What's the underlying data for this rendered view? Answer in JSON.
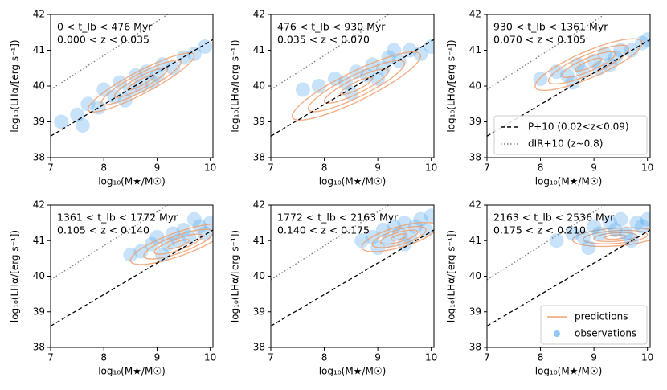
{
  "chart_data": [
    {
      "type": "scatter",
      "annotations": [
        "0 < t_lb < 476 Myr",
        "0.000 < z < 0.035"
      ],
      "xlabel": "log₁₀(M★/M☉)",
      "ylabel": "log₁₀(LHα/[erg s⁻¹])",
      "xlim": [
        7,
        10.05
      ],
      "ylim": [
        38,
        42
      ],
      "xticks": [
        7,
        8,
        9,
        10
      ],
      "yticks": [
        38,
        39,
        40,
        41,
        42
      ],
      "series": [
        {
          "type": "points",
          "color": "#4aa3ea",
          "x": [
            7.2,
            7.5,
            7.7,
            7.9,
            8.0,
            8.2,
            8.3,
            8.5,
            8.6,
            8.7,
            8.8,
            9.0,
            9.1,
            9.3,
            9.5,
            9.7,
            9.9,
            8.4,
            8.9,
            7.6
          ],
          "y": [
            39.0,
            39.2,
            39.5,
            39.4,
            39.9,
            39.7,
            40.1,
            39.9,
            40.3,
            40.0,
            40.4,
            40.3,
            40.6,
            40.5,
            40.8,
            40.9,
            41.1,
            39.6,
            40.1,
            38.9
          ]
        },
        {
          "type": "contour",
          "color": "#f0a070",
          "cx": 8.7,
          "cy": 40.1,
          "rx": [
            1.0,
            0.75,
            0.5,
            0.25
          ],
          "ry": [
            0.35,
            0.27,
            0.18,
            0.09
          ],
          "tilt": 0.75
        },
        {
          "type": "line",
          "style": "dashed",
          "color": "#000000",
          "x": [
            7,
            10.05
          ],
          "y": [
            38.6,
            41.3
          ]
        },
        {
          "type": "line",
          "style": "dotted",
          "color": "#777777",
          "x": [
            7,
            9.2
          ],
          "y": [
            39.9,
            42
          ]
        }
      ]
    },
    {
      "type": "scatter",
      "annotations": [
        "476 < t_lb < 930 Myr",
        "0.035 < z < 0.070"
      ],
      "xlabel": "log₁₀(M★/M☉)",
      "ylabel": "log₁₀(LHα/[erg s⁻¹])",
      "xlim": [
        7,
        10.05
      ],
      "ylim": [
        38,
        42
      ],
      "xticks": [
        7,
        8,
        9,
        10
      ],
      "yticks": [
        38,
        39,
        40,
        41,
        42
      ],
      "series": [
        {
          "type": "points",
          "color": "#4aa3ea",
          "x": [
            7.6,
            7.9,
            8.2,
            8.4,
            8.6,
            8.8,
            8.9,
            9.1,
            9.2,
            9.4,
            9.6,
            9.8,
            10.0,
            8.5,
            9.0,
            9.3
          ],
          "y": [
            39.9,
            40.0,
            40.2,
            40.1,
            40.4,
            40.3,
            40.6,
            40.5,
            40.8,
            40.7,
            41.0,
            40.9,
            41.1,
            39.8,
            40.2,
            41.0
          ]
        },
        {
          "type": "contour",
          "color": "#f0a070",
          "cx": 8.6,
          "cy": 40.0,
          "rx": [
            1.2,
            0.9,
            0.6,
            0.3
          ],
          "ry": [
            0.45,
            0.34,
            0.23,
            0.12
          ],
          "tilt": 0.7
        },
        {
          "type": "line",
          "style": "dashed",
          "color": "#000000",
          "x": [
            7,
            10.05
          ],
          "y": [
            38.6,
            41.3
          ]
        },
        {
          "type": "line",
          "style": "dotted",
          "color": "#777777",
          "x": [
            7,
            9.2
          ],
          "y": [
            39.9,
            42
          ]
        }
      ]
    },
    {
      "type": "scatter",
      "annotations": [
        "930 < t_lb < 1361 Myr",
        "0.070 < z < 0.105"
      ],
      "xlabel": "log₁₀(M★/M☉)",
      "ylabel": "log₁₀(LHα/[erg s⁻¹])",
      "xlim": [
        7,
        10.05
      ],
      "ylim": [
        38,
        42
      ],
      "xticks": [
        7,
        8,
        9,
        10
      ],
      "yticks": [
        38,
        39,
        40,
        41,
        42
      ],
      "legend": "lower right",
      "series": [
        {
          "type": "points",
          "color": "#4aa3ea",
          "x": [
            8.0,
            8.3,
            8.5,
            8.7,
            8.8,
            9.0,
            9.1,
            9.2,
            9.4,
            9.5,
            9.7,
            9.9,
            10.0,
            8.6,
            9.3
          ],
          "y": [
            40.2,
            40.4,
            40.3,
            40.6,
            40.4,
            40.7,
            40.5,
            40.9,
            40.8,
            41.0,
            41.0,
            41.2,
            41.3,
            40.1,
            40.6
          ]
        },
        {
          "type": "contour",
          "color": "#f0a070",
          "cx": 8.9,
          "cy": 40.6,
          "rx": [
            1.0,
            0.75,
            0.5,
            0.25
          ],
          "ry": [
            0.4,
            0.3,
            0.2,
            0.1
          ],
          "tilt": 0.6
        },
        {
          "type": "line",
          "name": "P+10 (0.02<z<0.09)",
          "style": "dashed",
          "color": "#000000",
          "x": [
            7,
            10.05
          ],
          "y": [
            38.6,
            41.3
          ]
        },
        {
          "type": "line",
          "name": "dIR+10 (z~0.8)",
          "style": "dotted",
          "color": "#777777",
          "x": [
            7,
            9.2
          ],
          "y": [
            39.9,
            42
          ]
        }
      ]
    },
    {
      "type": "scatter",
      "annotations": [
        "1361 < t_lb < 1772 Myr",
        "0.105 < z < 0.140"
      ],
      "xlabel": "log₁₀(M★/M☉)",
      "ylabel": "log₁₀(LHα/[erg s⁻¹])",
      "xlim": [
        7,
        10.05
      ],
      "ylim": [
        38,
        42
      ],
      "xticks": [
        7,
        8,
        9,
        10
      ],
      "yticks": [
        38,
        39,
        40,
        41,
        42
      ],
      "series": [
        {
          "type": "points",
          "color": "#4aa3ea",
          "x": [
            8.5,
            8.7,
            8.9,
            9.0,
            9.2,
            9.3,
            9.4,
            9.5,
            9.6,
            9.8,
            9.9,
            10.0,
            9.1,
            9.7
          ],
          "y": [
            40.6,
            40.7,
            40.9,
            41.1,
            40.9,
            41.2,
            41.0,
            41.3,
            41.1,
            41.4,
            41.2,
            41.5,
            40.6,
            41.6
          ]
        },
        {
          "type": "contour",
          "color": "#f0a070",
          "cx": 9.4,
          "cy": 40.9,
          "rx": [
            0.9,
            0.65,
            0.45,
            0.2
          ],
          "ry": [
            0.35,
            0.26,
            0.17,
            0.08
          ],
          "tilt": 0.5
        },
        {
          "type": "line",
          "style": "dashed",
          "color": "#000000",
          "x": [
            7,
            10.05
          ],
          "y": [
            38.6,
            41.3
          ]
        },
        {
          "type": "line",
          "style": "dotted",
          "color": "#777777",
          "x": [
            7,
            9.2
          ],
          "y": [
            39.9,
            42
          ]
        }
      ]
    },
    {
      "type": "scatter",
      "annotations": [
        "1772 < t_lb < 2163 Myr",
        "0.140 < z < 0.175"
      ],
      "xlabel": "log₁₀(M★/M☉)",
      "ylabel": "log₁₀(LHα/[erg s⁻¹])",
      "xlim": [
        7,
        10.05
      ],
      "ylim": [
        38,
        42
      ],
      "xticks": [
        7,
        8,
        9,
        10
      ],
      "yticks": [
        38,
        39,
        40,
        41,
        42
      ],
      "series": [
        {
          "type": "points",
          "color": "#4aa3ea",
          "x": [
            8.7,
            8.9,
            9.1,
            9.2,
            9.3,
            9.4,
            9.5,
            9.6,
            9.7,
            9.8,
            9.9,
            10.0,
            9.0,
            9.5
          ],
          "y": [
            41.0,
            41.1,
            41.3,
            41.0,
            41.4,
            41.2,
            41.5,
            41.1,
            41.4,
            41.6,
            41.3,
            41.7,
            40.8,
            40.9
          ]
        },
        {
          "type": "contour",
          "color": "#f0a070",
          "cx": 9.4,
          "cy": 41.1,
          "rx": [
            0.7,
            0.5,
            0.35,
            0.15
          ],
          "ry": [
            0.3,
            0.22,
            0.14,
            0.07
          ],
          "tilt": 0.4
        },
        {
          "type": "line",
          "style": "dashed",
          "color": "#000000",
          "x": [
            7,
            10.05
          ],
          "y": [
            38.6,
            41.3
          ]
        },
        {
          "type": "line",
          "style": "dotted",
          "color": "#777777",
          "x": [
            7,
            9.2
          ],
          "y": [
            39.9,
            42
          ]
        }
      ]
    },
    {
      "type": "scatter",
      "annotations": [
        "2163 < t_lb < 2536 Myr",
        "0.175 < z < 0.210"
      ],
      "xlabel": "log₁₀(M★/M☉)",
      "ylabel": "log₁₀(LHα/[erg s⁻¹])",
      "xlim": [
        7,
        10.05
      ],
      "ylim": [
        38,
        42
      ],
      "xticks": [
        7,
        8,
        9,
        10
      ],
      "yticks": [
        38,
        39,
        40,
        41,
        42
      ],
      "legend": "lower right",
      "series": [
        {
          "type": "contour",
          "name": "predictions",
          "color": "#f0a070",
          "cx": 9.4,
          "cy": 41.1,
          "rx": [
            0.8,
            0.6,
            0.4,
            0.2
          ],
          "ry": [
            0.25,
            0.18,
            0.12,
            0.06
          ],
          "tilt": 0.1
        },
        {
          "type": "points",
          "name": "observations",
          "color": "#4aa3ea",
          "x": [
            8.3,
            8.6,
            8.8,
            9.0,
            9.1,
            9.3,
            9.4,
            9.5,
            9.6,
            9.8,
            9.9,
            10.0,
            8.9,
            9.7
          ],
          "y": [
            41.0,
            41.2,
            41.1,
            41.4,
            41.2,
            41.5,
            41.3,
            41.6,
            41.2,
            41.5,
            41.4,
            41.6,
            40.8,
            41.0
          ]
        },
        {
          "type": "line",
          "style": "dashed",
          "color": "#000000",
          "x": [
            7,
            10.05
          ],
          "y": [
            38.6,
            41.3
          ]
        },
        {
          "type": "line",
          "style": "dotted",
          "color": "#777777",
          "x": [
            7,
            9.2
          ],
          "y": [
            39.9,
            42
          ]
        }
      ]
    }
  ]
}
